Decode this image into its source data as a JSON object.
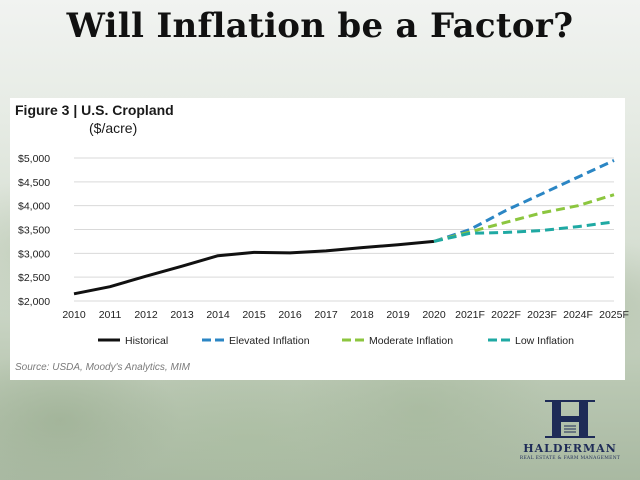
{
  "slide": {
    "title": "Will Inflation be a Factor?"
  },
  "figure": {
    "title": "Figure 3  |  U.S. Cropland",
    "unit": "($/acre)",
    "source": "Source: USDA, Moody's Analytics, MIM"
  },
  "logo": {
    "word": "HALDERMAN",
    "sub": "REAL ESTATE & FARM MANAGEMENT"
  },
  "chart_data": {
    "type": "line",
    "title": "Figure 3  |  U.S. Cropland",
    "ylabel": "($/acre)",
    "xlabel": "",
    "categories": [
      "2010",
      "2011",
      "2012",
      "2013",
      "2014",
      "2015",
      "2016",
      "2017",
      "2018",
      "2019",
      "2020",
      "2021F",
      "2022F",
      "2023F",
      "2024F",
      "2025F"
    ],
    "yticks": [
      "$2,000",
      "$2,500",
      "$3,000",
      "$3,500",
      "$4,000",
      "$4,500",
      "$5,000"
    ],
    "ylim": [
      2000,
      5000
    ],
    "grid": true,
    "legend_position": "bottom",
    "series": [
      {
        "name": "Historical",
        "color": "#111111",
        "dash": "solid",
        "values": [
          2150,
          2300,
          2520,
          2730,
          2950,
          3020,
          3010,
          3050,
          3120,
          3180,
          3250,
          null,
          null,
          null,
          null,
          null
        ]
      },
      {
        "name": "Elevated Inflation",
        "color": "#2b86c4",
        "dash": "dashed",
        "values": [
          null,
          null,
          null,
          null,
          null,
          null,
          null,
          null,
          null,
          null,
          3250,
          3500,
          3900,
          4250,
          4600,
          4950
        ]
      },
      {
        "name": "Moderate Inflation",
        "color": "#8cc63f",
        "dash": "dashed",
        "values": [
          null,
          null,
          null,
          null,
          null,
          null,
          null,
          null,
          null,
          null,
          3250,
          3450,
          3650,
          3850,
          4000,
          4230
        ]
      },
      {
        "name": "Low Inflation",
        "color": "#1fa9a3",
        "dash": "dashed",
        "values": [
          null,
          null,
          null,
          null,
          null,
          null,
          null,
          null,
          null,
          null,
          3250,
          3420,
          3440,
          3480,
          3560,
          3660
        ]
      }
    ]
  }
}
